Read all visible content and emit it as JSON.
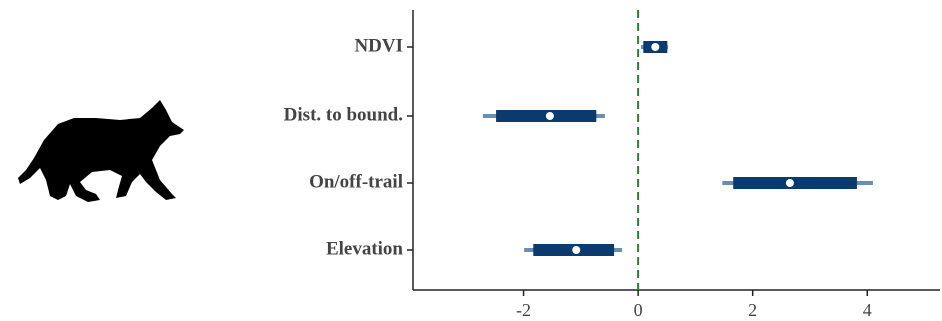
{
  "chart_data": {
    "type": "interval",
    "categories": [
      "NDVI",
      "Dist. to bound.",
      "On/off-trail",
      "Elevation"
    ],
    "values": [
      0.3,
      -1.54,
      2.65,
      -1.08
    ],
    "inner_low": [
      0.09,
      -2.48,
      1.66,
      -1.83
    ],
    "inner_high": [
      0.51,
      -0.73,
      3.82,
      -0.42
    ],
    "outer_low": [
      0.05,
      -2.71,
      1.47,
      -1.99
    ],
    "outer_high": [
      0.52,
      -0.58,
      4.1,
      -0.28
    ],
    "inner_color": "#0b3a6e",
    "outer_color": "#6b8fb0",
    "point_color": "#ffffff",
    "reference_line": 0,
    "reference_color": "#2e7d32",
    "xlim": [
      -3.93,
      5.27
    ],
    "xticks": [
      -2,
      0,
      2,
      4
    ]
  }
}
